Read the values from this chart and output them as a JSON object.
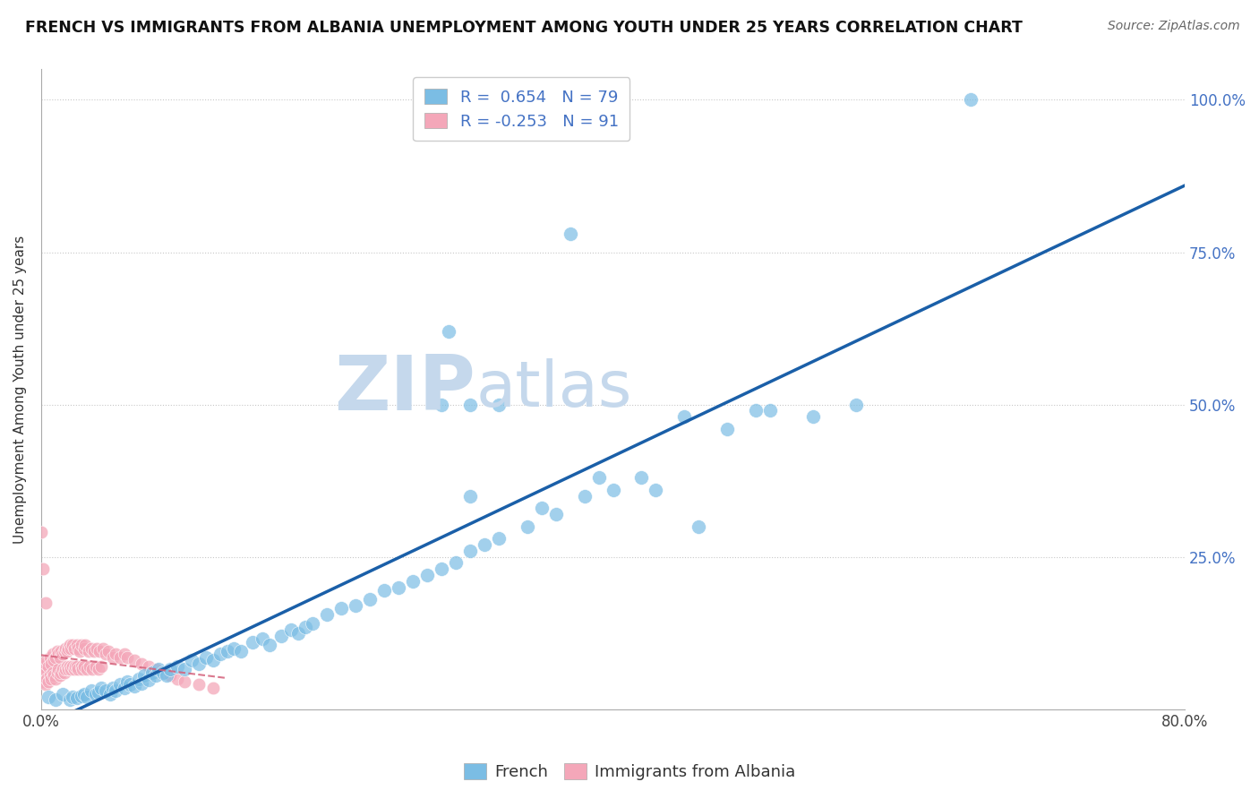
{
  "title": "FRENCH VS IMMIGRANTS FROM ALBANIA UNEMPLOYMENT AMONG YOUTH UNDER 25 YEARS CORRELATION CHART",
  "source": "Source: ZipAtlas.com",
  "ylabel": "Unemployment Among Youth under 25 years",
  "xlim": [
    0.0,
    0.8
  ],
  "ylim": [
    0.0,
    1.05
  ],
  "yticks": [
    0.0,
    0.25,
    0.5,
    0.75,
    1.0
  ],
  "ytick_labels": [
    "",
    "25.0%",
    "50.0%",
    "75.0%",
    "100.0%"
  ],
  "xtick_labels_show": [
    "0.0%",
    "80.0%"
  ],
  "french_R": 0.654,
  "french_N": 79,
  "albania_R": -0.253,
  "albania_N": 91,
  "blue_color": "#7bbde4",
  "pink_color": "#f4a7b9",
  "line_blue": "#1a5fa8",
  "line_pink": "#d4607a",
  "background_color": "#ffffff",
  "watermark_zip": "ZIP",
  "watermark_atlas": "atlas",
  "watermark_color": "#c5d8ec",
  "french_x": [
    0.005,
    0.01,
    0.015,
    0.02,
    0.022,
    0.025,
    0.028,
    0.03,
    0.032,
    0.035,
    0.038,
    0.04,
    0.042,
    0.045,
    0.048,
    0.05,
    0.052,
    0.055,
    0.058,
    0.06,
    0.062,
    0.065,
    0.068,
    0.07,
    0.072,
    0.075,
    0.078,
    0.08,
    0.082,
    0.085,
    0.088,
    0.09,
    0.095,
    0.1,
    0.105,
    0.11,
    0.115,
    0.12,
    0.125,
    0.13,
    0.135,
    0.14,
    0.148,
    0.155,
    0.16,
    0.168,
    0.175,
    0.18,
    0.185,
    0.19,
    0.2,
    0.21,
    0.22,
    0.23,
    0.24,
    0.25,
    0.26,
    0.27,
    0.28,
    0.29,
    0.3,
    0.31,
    0.32,
    0.34,
    0.36,
    0.38,
    0.4,
    0.42,
    0.45,
    0.48,
    0.51,
    0.54,
    0.57,
    0.3,
    0.35,
    0.39,
    0.43,
    0.46,
    0.5
  ],
  "french_y": [
    0.02,
    0.015,
    0.025,
    0.015,
    0.02,
    0.018,
    0.022,
    0.025,
    0.02,
    0.03,
    0.025,
    0.028,
    0.035,
    0.03,
    0.025,
    0.035,
    0.03,
    0.04,
    0.035,
    0.045,
    0.04,
    0.038,
    0.05,
    0.042,
    0.055,
    0.048,
    0.06,
    0.055,
    0.065,
    0.06,
    0.055,
    0.065,
    0.07,
    0.065,
    0.08,
    0.075,
    0.085,
    0.08,
    0.09,
    0.095,
    0.1,
    0.095,
    0.11,
    0.115,
    0.105,
    0.12,
    0.13,
    0.125,
    0.135,
    0.14,
    0.155,
    0.165,
    0.17,
    0.18,
    0.195,
    0.2,
    0.21,
    0.22,
    0.23,
    0.24,
    0.26,
    0.27,
    0.28,
    0.3,
    0.32,
    0.35,
    0.36,
    0.38,
    0.48,
    0.46,
    0.49,
    0.48,
    0.5,
    0.35,
    0.33,
    0.38,
    0.36,
    0.3,
    0.49
  ],
  "french_y_outliers": [
    [
      0.285,
      0.62
    ],
    [
      0.37,
      0.78
    ],
    [
      0.65,
      1.0
    ],
    [
      0.28,
      0.5
    ],
    [
      0.3,
      0.5
    ],
    [
      0.32,
      0.5
    ]
  ],
  "albania_x": [
    0.0,
    0.0,
    0.0,
    0.002,
    0.002,
    0.003,
    0.003,
    0.004,
    0.004,
    0.005,
    0.005,
    0.006,
    0.006,
    0.007,
    0.007,
    0.008,
    0.008,
    0.009,
    0.009,
    0.01,
    0.01,
    0.011,
    0.011,
    0.012,
    0.012,
    0.013,
    0.013,
    0.014,
    0.014,
    0.015,
    0.015,
    0.016,
    0.016,
    0.017,
    0.017,
    0.018,
    0.018,
    0.019,
    0.019,
    0.02,
    0.02,
    0.021,
    0.021,
    0.022,
    0.022,
    0.023,
    0.023,
    0.024,
    0.025,
    0.025,
    0.026,
    0.026,
    0.027,
    0.028,
    0.028,
    0.029,
    0.03,
    0.03,
    0.031,
    0.032,
    0.033,
    0.034,
    0.035,
    0.036,
    0.037,
    0.038,
    0.039,
    0.04,
    0.041,
    0.042,
    0.043,
    0.045,
    0.047,
    0.05,
    0.052,
    0.055,
    0.058,
    0.06,
    0.065,
    0.07,
    0.075,
    0.08,
    0.085,
    0.09,
    0.095,
    0.1,
    0.11,
    0.12,
    0.0,
    0.001,
    0.003
  ],
  "albania_y": [
    0.05,
    0.06,
    0.07,
    0.045,
    0.065,
    0.04,
    0.075,
    0.05,
    0.08,
    0.045,
    0.07,
    0.055,
    0.085,
    0.05,
    0.075,
    0.06,
    0.09,
    0.055,
    0.08,
    0.05,
    0.085,
    0.06,
    0.095,
    0.065,
    0.09,
    0.055,
    0.085,
    0.06,
    0.095,
    0.065,
    0.09,
    0.06,
    0.095,
    0.065,
    0.1,
    0.07,
    0.095,
    0.065,
    0.1,
    0.07,
    0.105,
    0.065,
    0.1,
    0.07,
    0.105,
    0.065,
    0.1,
    0.07,
    0.105,
    0.07,
    0.1,
    0.065,
    0.095,
    0.07,
    0.105,
    0.065,
    0.1,
    0.07,
    0.105,
    0.065,
    0.095,
    0.07,
    0.1,
    0.065,
    0.095,
    0.07,
    0.1,
    0.065,
    0.095,
    0.07,
    0.1,
    0.09,
    0.095,
    0.085,
    0.09,
    0.085,
    0.09,
    0.085,
    0.08,
    0.075,
    0.07,
    0.065,
    0.06,
    0.055,
    0.05,
    0.045,
    0.04,
    0.035,
    0.29,
    0.23,
    0.175
  ]
}
